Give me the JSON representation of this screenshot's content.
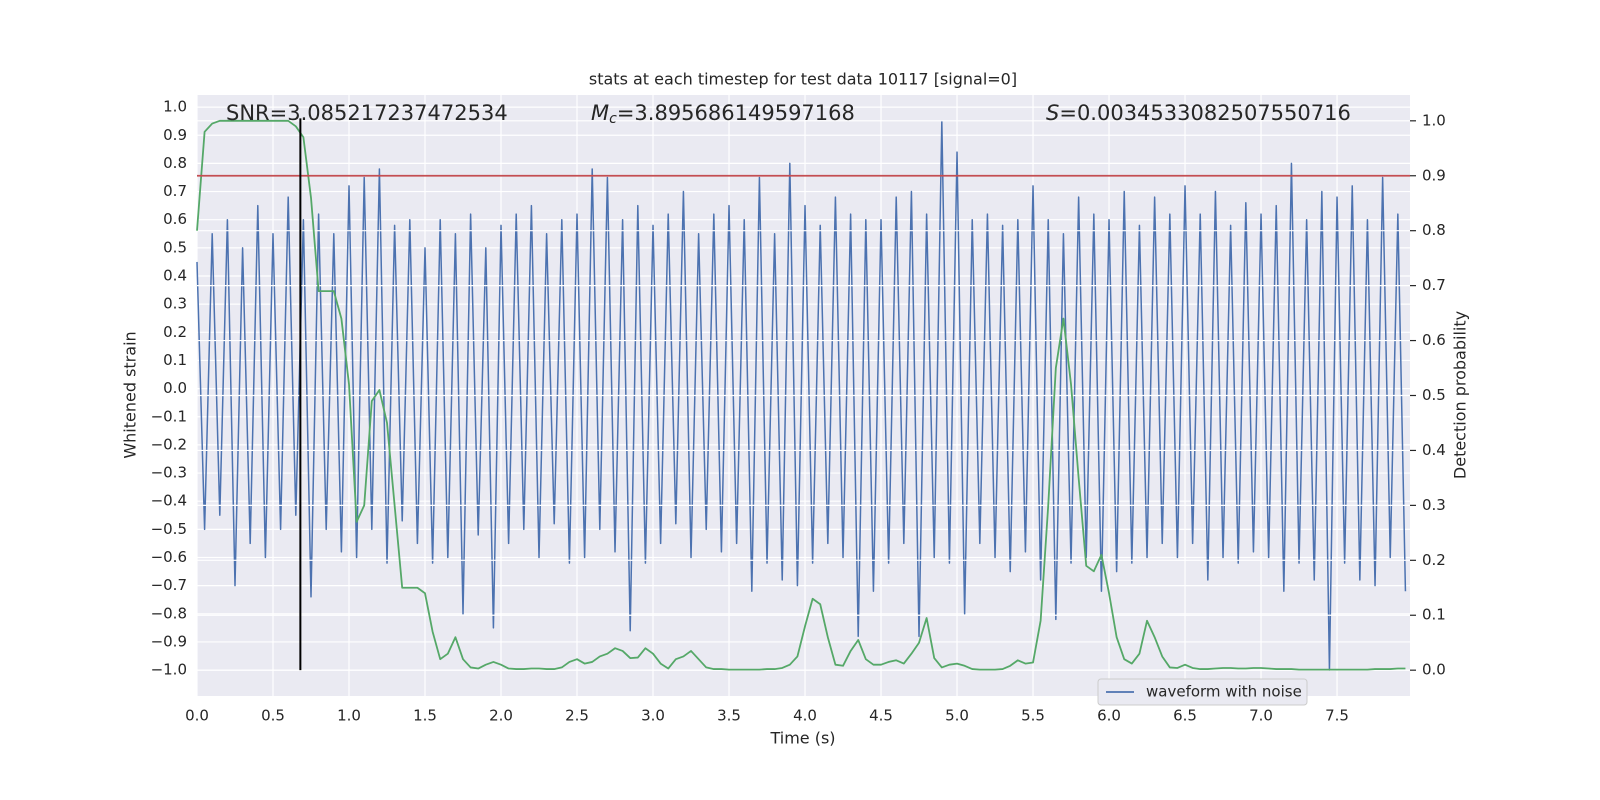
{
  "chart_data": {
    "type": "line",
    "title": "stats at each timestep for test data 10117 [signal=0]",
    "xlabel": "Time (s)",
    "ylabel": "Whitened strain",
    "y2label": "Detection probability",
    "annotations": [
      "SNR=3.085217237472534",
      "Mc=3.895686149597168",
      "S=0.0034533082507550716"
    ],
    "x": [
      0,
      0.05,
      0.1,
      0.15,
      0.2,
      0.25,
      0.3,
      0.35,
      0.4,
      0.45,
      0.5,
      0.55,
      0.6,
      0.65,
      0.7,
      0.75,
      0.8,
      0.85,
      0.9,
      0.95,
      1,
      1.05,
      1.1,
      1.15,
      1.2,
      1.25,
      1.3,
      1.35,
      1.4,
      1.45,
      1.5,
      1.55,
      1.6,
      1.65,
      1.7,
      1.75,
      1.8,
      1.85,
      1.9,
      1.95,
      2,
      2.05,
      2.1,
      2.15,
      2.2,
      2.25,
      2.3,
      2.35,
      2.4,
      2.45,
      2.5,
      2.55,
      2.6,
      2.65,
      2.7,
      2.75,
      2.8,
      2.85,
      2.9,
      2.95,
      3,
      3.05,
      3.1,
      3.15,
      3.2,
      3.25,
      3.3,
      3.35,
      3.4,
      3.45,
      3.5,
      3.55,
      3.6,
      3.65,
      3.7,
      3.75,
      3.8,
      3.85,
      3.9,
      3.95,
      4,
      4.05,
      4.1,
      4.15,
      4.2,
      4.25,
      4.3,
      4.35,
      4.4,
      4.45,
      4.5,
      4.55,
      4.6,
      4.65,
      4.7,
      4.75,
      4.8,
      4.85,
      4.9,
      4.95,
      5,
      5.05,
      5.1,
      5.15,
      5.2,
      5.25,
      5.3,
      5.35,
      5.4,
      5.45,
      5.5,
      5.55,
      5.6,
      5.65,
      5.7,
      5.75,
      5.8,
      5.85,
      5.9,
      5.95,
      6,
      6.05,
      6.1,
      6.15,
      6.2,
      6.25,
      6.3,
      6.35,
      6.4,
      6.45,
      6.5,
      6.55,
      6.6,
      6.65,
      6.7,
      6.75,
      6.8,
      6.85,
      6.9,
      6.95,
      7,
      7.05,
      7.1,
      7.15,
      7.2,
      7.25,
      7.3,
      7.35,
      7.4,
      7.45,
      7.5,
      7.55,
      7.6,
      7.65,
      7.7,
      7.75,
      7.8,
      7.85,
      7.9,
      7.95
    ],
    "series": [
      {
        "name": "waveform with noise",
        "color": "#4c72b0",
        "values": [
          0.45,
          -0.5,
          0.55,
          -0.45,
          0.6,
          -0.7,
          0.5,
          -0.55,
          0.65,
          -0.6,
          0.55,
          -0.5,
          0.68,
          -0.45,
          0.6,
          -0.74,
          0.62,
          -0.5,
          0.55,
          -0.58,
          0.72,
          -0.6,
          0.75,
          -0.5,
          0.78,
          -0.62,
          0.58,
          -0.47,
          0.6,
          -0.55,
          0.5,
          -0.62,
          0.6,
          -0.6,
          0.55,
          -0.8,
          0.62,
          -0.52,
          0.5,
          -0.85,
          0.58,
          -0.55,
          0.62,
          -0.5,
          0.65,
          -0.6,
          0.55,
          -0.48,
          0.6,
          -0.62,
          0.62,
          -0.6,
          0.78,
          -0.5,
          0.75,
          -0.58,
          0.6,
          -0.86,
          0.65,
          -0.62,
          0.58,
          -0.55,
          0.62,
          -0.48,
          0.7,
          -0.6,
          0.55,
          -0.5,
          0.62,
          -0.58,
          0.65,
          -0.55,
          0.6,
          -0.72,
          0.75,
          -0.62,
          0.55,
          -0.68,
          0.8,
          -0.7,
          0.65,
          -0.62,
          0.58,
          -0.55,
          0.68,
          -0.6,
          0.62,
          -0.88,
          0.6,
          -0.72,
          0.6,
          -0.62,
          0.68,
          -0.55,
          0.7,
          -0.88,
          0.62,
          -0.6,
          0.95,
          -0.62,
          0.84,
          -0.8,
          0.6,
          -0.55,
          0.62,
          -0.6,
          0.58,
          -0.65,
          0.6,
          -0.58,
          0.72,
          -0.68,
          0.6,
          -0.82,
          0.55,
          -0.62,
          0.68,
          -0.6,
          0.62,
          -0.72,
          0.6,
          -0.65,
          0.7,
          -0.62,
          0.58,
          -0.6,
          0.68,
          -0.55,
          0.62,
          -0.6,
          0.72,
          -0.55,
          0.62,
          -0.68,
          0.7,
          -0.6,
          0.58,
          -0.62,
          0.66,
          -0.58,
          0.62,
          -0.6,
          0.65,
          -0.72,
          0.8,
          -0.62,
          0.6,
          -0.68,
          0.7,
          -1.0,
          0.68,
          -0.62,
          0.72,
          -0.68,
          0.6,
          -0.7,
          0.75,
          -0.6,
          0.62,
          -0.72
        ]
      },
      {
        "color": "#55a868",
        "axis": "y2",
        "values": [
          0.8,
          0.98,
          0.995,
          1,
          1,
          1,
          1,
          1,
          1,
          1,
          1,
          1,
          1,
          0.99,
          0.97,
          0.86,
          0.69,
          0.69,
          0.69,
          0.64,
          0.52,
          0.27,
          0.3,
          0.49,
          0.51,
          0.45,
          0.3,
          0.15,
          0.15,
          0.15,
          0.14,
          0.07,
          0.02,
          0.03,
          0.06,
          0.02,
          0.005,
          0.003,
          0.01,
          0.015,
          0.01,
          0.003,
          0.002,
          0.002,
          0.003,
          0.003,
          0.002,
          0.002,
          0.005,
          0.015,
          0.02,
          0.012,
          0.015,
          0.025,
          0.03,
          0.04,
          0.035,
          0.022,
          0.023,
          0.04,
          0.03,
          0.012,
          0.003,
          0.02,
          0.025,
          0.035,
          0.02,
          0.005,
          0.002,
          0.002,
          0.001,
          0.001,
          0.001,
          0.001,
          0.001,
          0.002,
          0.002,
          0.004,
          0.01,
          0.025,
          0.08,
          0.13,
          0.12,
          0.06,
          0.01,
          0.008,
          0.035,
          0.055,
          0.02,
          0.01,
          0.01,
          0.015,
          0.018,
          0.012,
          0.03,
          0.05,
          0.095,
          0.022,
          0.005,
          0.01,
          0.012,
          0.008,
          0.002,
          0.001,
          0.001,
          0.001,
          0.002,
          0.008,
          0.018,
          0.012,
          0.014,
          0.09,
          0.3,
          0.55,
          0.64,
          0.52,
          0.35,
          0.19,
          0.18,
          0.21,
          0.14,
          0.06,
          0.02,
          0.012,
          0.03,
          0.09,
          0.06,
          0.025,
          0.005,
          0.004,
          0.01,
          0.004,
          0.002,
          0.002,
          0.003,
          0.004,
          0.004,
          0.003,
          0.003,
          0.004,
          0.004,
          0.003,
          0.002,
          0.002,
          0.002,
          0.001,
          0.001,
          0.001,
          0.001,
          0.001,
          0.001,
          0.001,
          0.001,
          0.001,
          0.001,
          0.002,
          0.002,
          0.002,
          0.003,
          0.003
        ]
      }
    ],
    "hlines": [
      {
        "y2": 0.9,
        "color": "#c44e52"
      }
    ],
    "vlines": [
      {
        "x": 0.68,
        "ymin": -1.0,
        "ymax": 0.96,
        "color": "#000000"
      }
    ],
    "xlim": [
      0,
      7.98
    ],
    "xticks": [
      {
        "value": 0,
        "label": "0.0"
      },
      0.5,
      {
        "value": 1,
        "label": "1.0"
      },
      1.5,
      {
        "value": 2,
        "label": "2.0"
      },
      2.5,
      {
        "value": 3,
        "label": "3.0"
      },
      3.5,
      {
        "value": 4,
        "label": "4.0"
      },
      4.5,
      {
        "value": 5,
        "label": "5.0"
      },
      5.5,
      {
        "value": 6,
        "label": "6.0"
      },
      6.5,
      {
        "value": 7,
        "label": "7.0"
      },
      7.5
    ],
    "ylim": [
      -1.092,
      1.043
    ],
    "yticks": [
      {
        "value": -1,
        "label": "−1.0"
      },
      {
        "value": -0.9,
        "label": "−0.9"
      },
      {
        "value": -0.8,
        "label": "−0.8"
      },
      {
        "value": -0.7,
        "label": "−0.7"
      },
      {
        "value": -0.6,
        "label": "−0.6"
      },
      {
        "value": -0.5,
        "label": "−0.5"
      },
      {
        "value": -0.4,
        "label": "−0.4"
      },
      {
        "value": -0.3,
        "label": "−0.3"
      },
      {
        "value": -0.2,
        "label": "−0.2"
      },
      {
        "value": -0.1,
        "label": "−0.1"
      },
      {
        "value": 0,
        "label": "0.0"
      },
      0.1,
      0.2,
      0.3,
      0.4,
      0.5,
      0.6,
      0.7,
      0.8,
      0.9,
      {
        "value": 1,
        "label": "1.0"
      }
    ],
    "y2lim": [
      -0.047,
      1.047
    ],
    "y2ticks": [
      {
        "value": 0,
        "label": "0.0"
      },
      0.1,
      0.2,
      0.3,
      0.4,
      0.5,
      0.6,
      0.7,
      0.8,
      0.9,
      {
        "value": 1,
        "label": "1.0"
      }
    ],
    "grid": true,
    "legend": "lower right"
  }
}
